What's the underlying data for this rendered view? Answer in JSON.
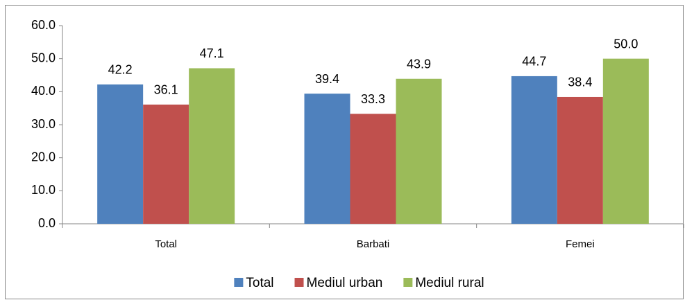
{
  "chart_data": {
    "type": "bar",
    "categories": [
      "Total",
      "Barbati",
      "Femei"
    ],
    "series": [
      {
        "name": "Total",
        "color": "#4f81bd",
        "values": [
          42.2,
          39.4,
          44.7
        ],
        "value_labels": [
          "42.2",
          "39.4",
          "44.7"
        ]
      },
      {
        "name": "Mediul urban",
        "color": "#c0504d",
        "values": [
          36.1,
          33.3,
          38.4
        ],
        "value_labels": [
          "36.1",
          "33.3",
          "38.4"
        ]
      },
      {
        "name": "Mediul rural",
        "color": "#9bbb59",
        "values": [
          47.1,
          43.9,
          50
        ],
        "value_labels": [
          "47.1",
          "43.9",
          "50.0"
        ]
      }
    ],
    "ylim": [
      0,
      60
    ],
    "yticks": [
      {
        "value": 0,
        "label": "0.0"
      },
      {
        "value": 10,
        "label": "10.0"
      },
      {
        "value": 20,
        "label": "20.0"
      },
      {
        "value": 30,
        "label": "30.0"
      },
      {
        "value": 40,
        "label": "40.0"
      },
      {
        "value": 50,
        "label": "50.0"
      },
      {
        "value": 60,
        "label": "60.0"
      }
    ],
    "grid": false,
    "legend": "bottom"
  }
}
